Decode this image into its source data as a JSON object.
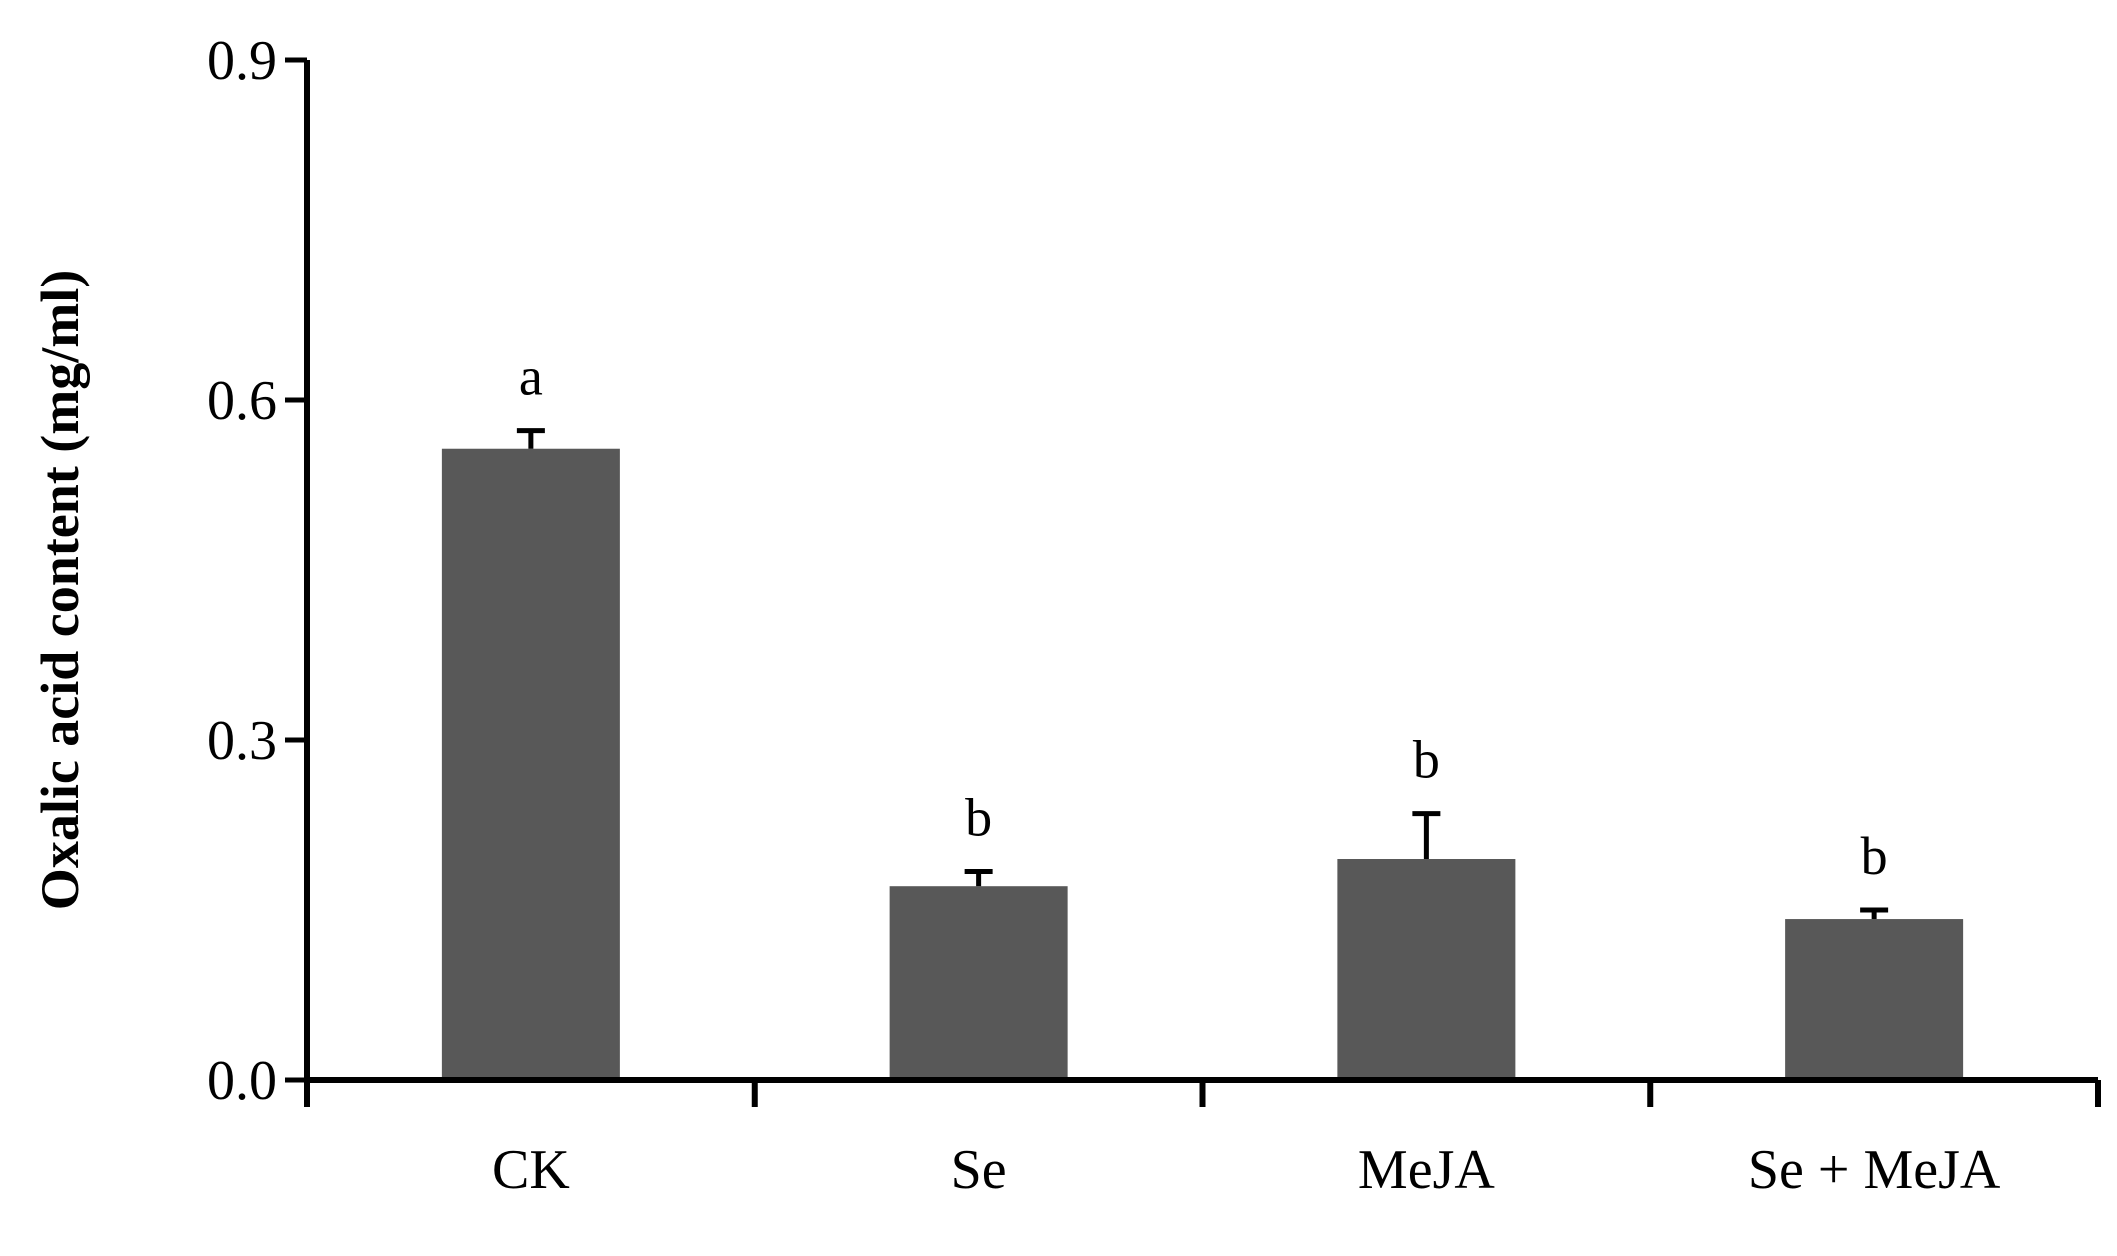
{
  "chart_data": {
    "type": "bar",
    "title": "",
    "xlabel": "",
    "ylabel": "Oxalic acid content (mg/ml)",
    "ylim": [
      0,
      0.9
    ],
    "yticks": [
      "0.0",
      "0.3",
      "0.6",
      "0.9"
    ],
    "ytick_values": [
      0.0,
      0.3,
      0.6,
      0.9
    ],
    "categories": [
      "CK",
      "Se",
      "MeJA",
      "Se + MeJA"
    ],
    "values": [
      0.557,
      0.171,
      0.195,
      0.142
    ],
    "error": [
      0.016,
      0.013,
      0.04,
      0.008
    ],
    "significance": [
      "a",
      "b",
      "b",
      "b"
    ],
    "grid": false,
    "legend": "none",
    "bar_color": "#585858",
    "axis_color": "#000000"
  }
}
